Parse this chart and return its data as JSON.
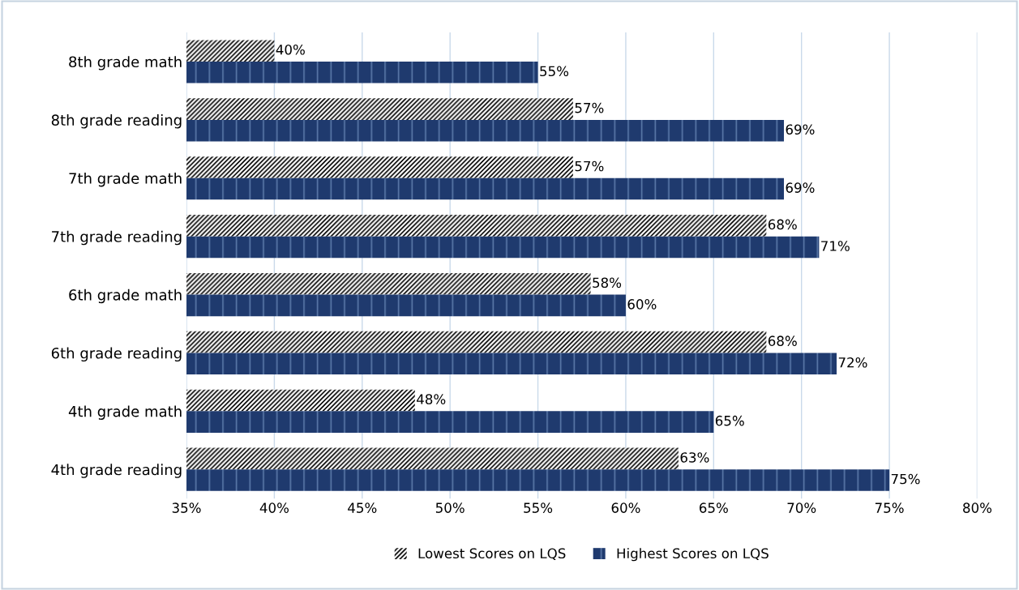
{
  "chart_data": {
    "type": "bar",
    "orientation": "horizontal",
    "categories": [
      "8th grade math",
      "8th grade reading",
      "7th grade math",
      "7th grade reading",
      "6th grade math",
      "6th grade reading",
      "4th grade math",
      "4th grade reading"
    ],
    "series": [
      {
        "name": "Lowest Scores on LQS",
        "color": "#000000",
        "values": [
          40,
          57,
          57,
          68,
          58,
          68,
          48,
          63
        ],
        "value_labels": [
          "40%",
          "57%",
          "57%",
          "68%",
          "58%",
          "68%",
          "48%",
          "63%"
        ]
      },
      {
        "name": "Highest Scores on LQS",
        "color": "#1f3a6e",
        "values": [
          55,
          69,
          69,
          71,
          60,
          72,
          65,
          75
        ],
        "value_labels": [
          "55%",
          "69%",
          "69%",
          "71%",
          "60%",
          "72%",
          "65%",
          "75%"
        ]
      }
    ],
    "xlim": [
      35,
      80
    ],
    "xticks": [
      {
        "value": 35,
        "label": "35%"
      },
      {
        "value": 40,
        "label": "40%"
      },
      {
        "value": 45,
        "label": "45%"
      },
      {
        "value": 50,
        "label": "50%"
      },
      {
        "value": 55,
        "label": "55%"
      },
      {
        "value": 60,
        "label": "60%"
      },
      {
        "value": 65,
        "label": "65%"
      },
      {
        "value": 70,
        "label": "70%"
      },
      {
        "value": 75,
        "label": "75%"
      },
      {
        "value": 80,
        "label": "80%"
      }
    ],
    "grid": "x",
    "legend": "bottom"
  }
}
